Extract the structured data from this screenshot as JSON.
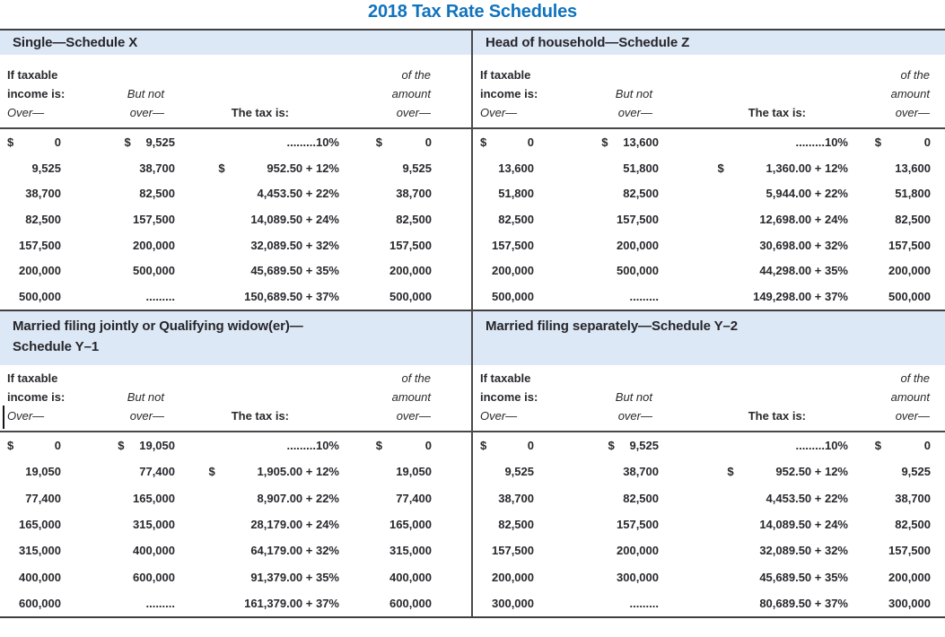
{
  "page_title": "2018 Tax Rate Schedules",
  "colors": {
    "title_blue": "#1173bd",
    "band_background": "#dce8f5",
    "text": "#29282d",
    "rule": "#3f3f42"
  },
  "column_headers": {
    "if_taxable": "If taxable",
    "income_is": "income is:",
    "over": "Over—",
    "but_not": "But not",
    "but_not_over": "over—",
    "tax_is": "The tax is:",
    "of_the": "of the",
    "amount": "amount",
    "amount_over": "over—"
  },
  "schedules": {
    "single": {
      "title1": "Single—Schedule X",
      "title2": "",
      "rows": [
        [
          "$",
          "0",
          "$",
          "9,525",
          "",
          ".........10%",
          "$",
          "0"
        ],
        [
          "",
          "9,525",
          "",
          "38,700",
          "$",
          "952.50 + 12%",
          "",
          "9,525"
        ],
        [
          "",
          "38,700",
          "",
          "82,500",
          "",
          "4,453.50 + 22%",
          "",
          "38,700"
        ],
        [
          "",
          "82,500",
          "",
          "157,500",
          "",
          "14,089.50 + 24%",
          "",
          "82,500"
        ],
        [
          "",
          "157,500",
          "",
          "200,000",
          "",
          "32,089.50 + 32%",
          "",
          "157,500"
        ],
        [
          "",
          "200,000",
          "",
          "500,000",
          "",
          "45,689.50 + 35%",
          "",
          "200,000"
        ],
        [
          "",
          "500,000",
          "",
          ".........",
          "",
          "150,689.50 + 37%",
          "",
          "500,000"
        ]
      ]
    },
    "head_of_household": {
      "title1": "Head of household—Schedule Z",
      "title2": "",
      "rows": [
        [
          "$",
          "0",
          "$",
          "13,600",
          "",
          ".........10%",
          "$",
          "0"
        ],
        [
          "",
          "13,600",
          "",
          "51,800",
          "$",
          "1,360.00 + 12%",
          "",
          "13,600"
        ],
        [
          "",
          "51,800",
          "",
          "82,500",
          "",
          "5,944.00 + 22%",
          "",
          "51,800"
        ],
        [
          "",
          "82,500",
          "",
          "157,500",
          "",
          "12,698.00 + 24%",
          "",
          "82,500"
        ],
        [
          "",
          "157,500",
          "",
          "200,000",
          "",
          "30,698.00 + 32%",
          "",
          "157,500"
        ],
        [
          "",
          "200,000",
          "",
          "500,000",
          "",
          "44,298.00 + 35%",
          "",
          "200,000"
        ],
        [
          "",
          "500,000",
          "",
          ".........",
          "",
          "149,298.00 + 37%",
          "",
          "500,000"
        ]
      ]
    },
    "married_joint": {
      "title1": "Married filing jointly or Qualifying widow(er)—",
      "title2": "Schedule Y–1",
      "rows": [
        [
          "$",
          "0",
          "$",
          "19,050",
          "",
          ".........10%",
          "$",
          "0"
        ],
        [
          "",
          "19,050",
          "",
          "77,400",
          "$",
          "1,905.00 + 12%",
          "",
          "19,050"
        ],
        [
          "",
          "77,400",
          "",
          "165,000",
          "",
          "8,907.00 + 22%",
          "",
          "77,400"
        ],
        [
          "",
          "165,000",
          "",
          "315,000",
          "",
          "28,179.00 + 24%",
          "",
          "165,000"
        ],
        [
          "",
          "315,000",
          "",
          "400,000",
          "",
          "64,179.00 + 32%",
          "",
          "315,000"
        ],
        [
          "",
          "400,000",
          "",
          "600,000",
          "",
          "91,379.00 + 35%",
          "",
          "400,000"
        ],
        [
          "",
          "600,000",
          "",
          ".........",
          "",
          "161,379.00 + 37%",
          "",
          "600,000"
        ]
      ]
    },
    "married_separate": {
      "title1": "Married filing separately—Schedule Y–2",
      "title2": "",
      "rows": [
        [
          "$",
          "0",
          "$",
          "9,525",
          "",
          ".........10%",
          "$",
          "0"
        ],
        [
          "",
          "9,525",
          "",
          "38,700",
          "$",
          "952.50 + 12%",
          "",
          "9,525"
        ],
        [
          "",
          "38,700",
          "",
          "82,500",
          "",
          "4,453.50 + 22%",
          "",
          "38,700"
        ],
        [
          "",
          "82,500",
          "",
          "157,500",
          "",
          "14,089.50 + 24%",
          "",
          "82,500"
        ],
        [
          "",
          "157,500",
          "",
          "200,000",
          "",
          "32,089.50 + 32%",
          "",
          "157,500"
        ],
        [
          "",
          "200,000",
          "",
          "300,000",
          "",
          "45,689.50 + 35%",
          "",
          "200,000"
        ],
        [
          "",
          "300,000",
          "",
          ".........",
          "",
          "80,689.50 + 37%",
          "",
          "300,000"
        ]
      ]
    }
  }
}
